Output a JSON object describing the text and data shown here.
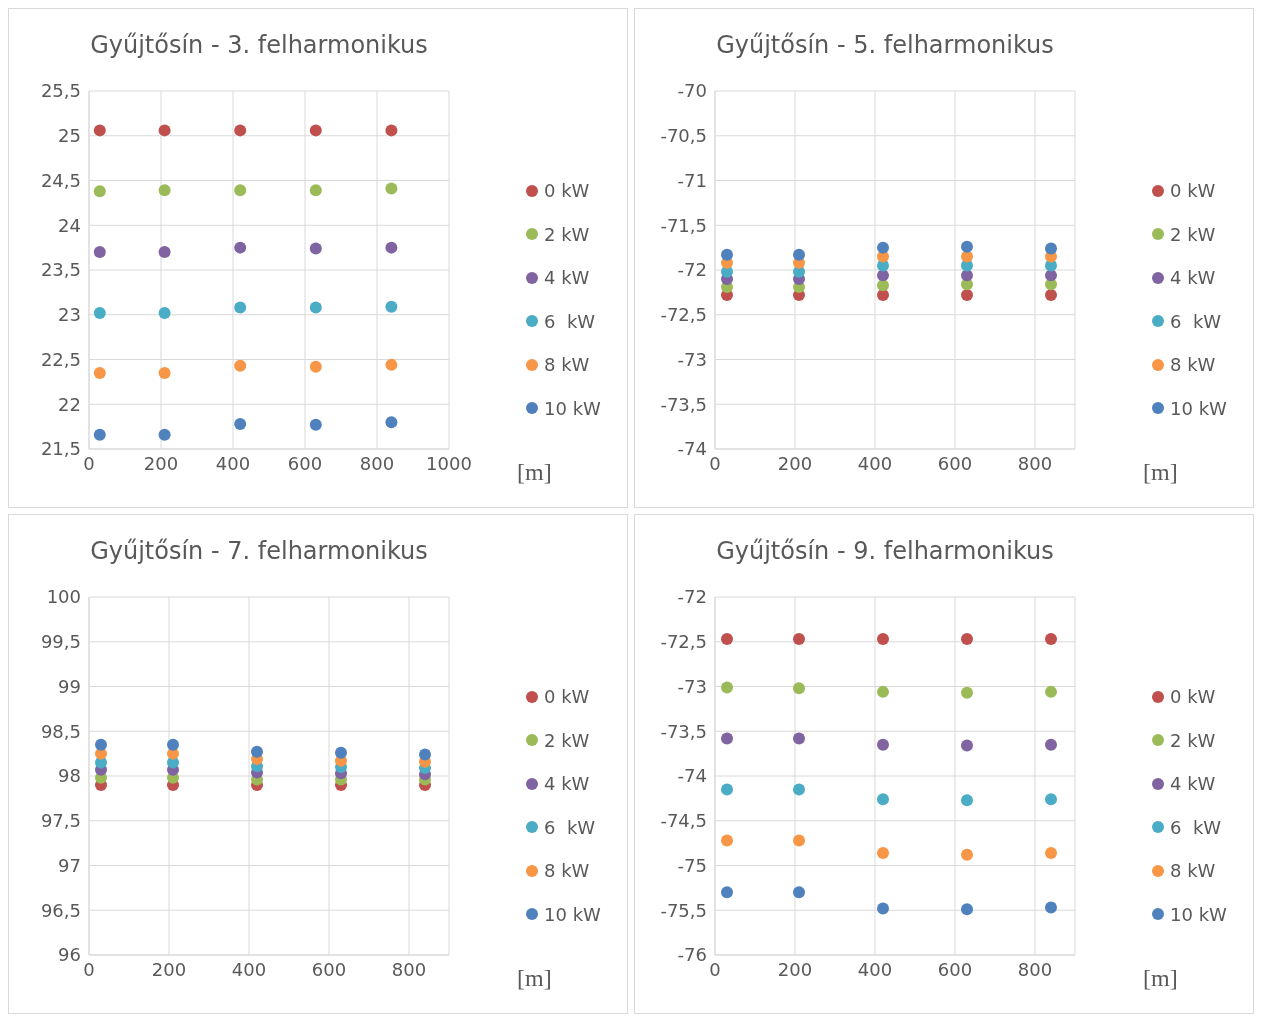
{
  "chart_data": [
    {
      "type": "scatter",
      "title": "Gyűjtősín - 3. felharmonikus",
      "xlabel": "[m]",
      "xlim": [
        0,
        1000
      ],
      "xticks": [
        0,
        200,
        400,
        600,
        800,
        1000
      ],
      "ylim": [
        21.5,
        25.5
      ],
      "yticks": [
        {
          "value": 21.5,
          "label": "21,5"
        },
        22,
        {
          "value": 22.5,
          "label": "22,5"
        },
        23,
        {
          "value": 23.5,
          "label": "23,5"
        },
        24,
        {
          "value": 24.5,
          "label": "24,5"
        },
        25,
        {
          "value": 25.5,
          "label": "25,5"
        }
      ],
      "grid": true,
      "legend": "right",
      "marker": "circle",
      "x": [
        30,
        210,
        420,
        630,
        840
      ],
      "series": [
        {
          "name": "0 kW",
          "color": "#c0504d",
          "values": [
            25.06,
            25.06,
            25.06,
            25.06,
            25.06
          ]
        },
        {
          "name": "2 kW",
          "color": "#9bbb59",
          "values": [
            24.38,
            24.39,
            24.39,
            24.39,
            24.41
          ]
        },
        {
          "name": "4 kW",
          "color": "#8064a2",
          "values": [
            23.7,
            23.7,
            23.75,
            23.74,
            23.75
          ]
        },
        {
          "name": "6  kW",
          "color": "#4bacc6",
          "values": [
            23.02,
            23.02,
            23.08,
            23.08,
            23.09
          ]
        },
        {
          "name": "8 kW",
          "color": "#f79646",
          "values": [
            22.35,
            22.35,
            22.43,
            22.42,
            22.44
          ]
        },
        {
          "name": "10 kW",
          "color": "#4f81bd",
          "values": [
            21.66,
            21.66,
            21.78,
            21.77,
            21.8
          ]
        }
      ]
    },
    {
      "type": "scatter",
      "title": "Gyűjtősín - 5. felharmonikus",
      "xlabel": "[m]",
      "xlim": [
        0,
        900
      ],
      "xticks": [
        0,
        200,
        400,
        600,
        800
      ],
      "ylim": [
        -74,
        -70
      ],
      "yticks": [
        -74,
        {
          "value": -73.5,
          "label": "-73,5"
        },
        -73,
        {
          "value": -72.5,
          "label": "-72,5"
        },
        -72,
        {
          "value": -71.5,
          "label": "-71,5"
        },
        -71,
        {
          "value": -70.5,
          "label": "-70,5"
        },
        -70
      ],
      "grid": true,
      "legend": "right",
      "marker": "circle",
      "x": [
        30,
        210,
        420,
        630,
        840
      ],
      "series": [
        {
          "name": "0 kW",
          "color": "#c0504d",
          "values": [
            -72.28,
            -72.28,
            -72.28,
            -72.28,
            -72.28
          ]
        },
        {
          "name": "2 kW",
          "color": "#9bbb59",
          "values": [
            -72.19,
            -72.19,
            -72.17,
            -72.16,
            -72.16
          ]
        },
        {
          "name": "4 kW",
          "color": "#8064a2",
          "values": [
            -72.1,
            -72.1,
            -72.06,
            -72.06,
            -72.06
          ]
        },
        {
          "name": "6  kW",
          "color": "#4bacc6",
          "values": [
            -72.02,
            -72.02,
            -71.95,
            -71.95,
            -71.95
          ]
        },
        {
          "name": "8 kW",
          "color": "#f79646",
          "values": [
            -71.92,
            -71.92,
            -71.85,
            -71.85,
            -71.85
          ]
        },
        {
          "name": "10 kW",
          "color": "#4f81bd",
          "values": [
            -71.83,
            -71.83,
            -71.75,
            -71.74,
            -71.76
          ]
        }
      ]
    },
    {
      "type": "scatter",
      "title": "Gyűjtősín - 7. felharmonikus",
      "xlabel": "[m]",
      "xlim": [
        0,
        900
      ],
      "xticks": [
        0,
        200,
        400,
        600,
        800
      ],
      "ylim": [
        96,
        100
      ],
      "yticks": [
        96,
        {
          "value": 96.5,
          "label": "96,5"
        },
        97,
        {
          "value": 97.5,
          "label": "97,5"
        },
        98,
        {
          "value": 98.5,
          "label": "98,5"
        },
        99,
        {
          "value": 99.5,
          "label": "99,5"
        },
        100
      ],
      "grid": true,
      "legend": "right",
      "marker": "circle",
      "x": [
        30,
        210,
        420,
        630,
        840
      ],
      "series": [
        {
          "name": "0 kW",
          "color": "#c0504d",
          "values": [
            97.9,
            97.9,
            97.9,
            97.9,
            97.9
          ]
        },
        {
          "name": "2 kW",
          "color": "#9bbb59",
          "values": [
            97.98,
            97.98,
            97.96,
            97.96,
            97.96
          ]
        },
        {
          "name": "4 kW",
          "color": "#8064a2",
          "values": [
            98.07,
            98.07,
            98.04,
            98.03,
            98.02
          ]
        },
        {
          "name": "6  kW",
          "color": "#4bacc6",
          "values": [
            98.15,
            98.15,
            98.11,
            98.1,
            98.09
          ]
        },
        {
          "name": "8 kW",
          "color": "#f79646",
          "values": [
            98.25,
            98.25,
            98.19,
            98.17,
            98.16
          ]
        },
        {
          "name": "10 kW",
          "color": "#4f81bd",
          "values": [
            98.35,
            98.35,
            98.27,
            98.26,
            98.24
          ]
        }
      ]
    },
    {
      "type": "scatter",
      "title": "Gyűjtősín - 9. felharmonikus",
      "xlabel": "[m]",
      "xlim": [
        0,
        900
      ],
      "xticks": [
        0,
        200,
        400,
        600,
        800
      ],
      "ylim": [
        -76,
        -72
      ],
      "yticks": [
        -76,
        {
          "value": -75.5,
          "label": "-75,5"
        },
        -75,
        {
          "value": -74.5,
          "label": "-74,5"
        },
        -74,
        {
          "value": -73.5,
          "label": "-73,5"
        },
        -73,
        {
          "value": -72.5,
          "label": "-72,5"
        },
        -72
      ],
      "grid": true,
      "legend": "right",
      "marker": "circle",
      "x": [
        30,
        210,
        420,
        630,
        840
      ],
      "series": [
        {
          "name": "0 kW",
          "color": "#c0504d",
          "values": [
            -72.47,
            -72.47,
            -72.47,
            -72.47,
            -72.47
          ]
        },
        {
          "name": "2 kW",
          "color": "#9bbb59",
          "values": [
            -73.01,
            -73.02,
            -73.06,
            -73.07,
            -73.06
          ]
        },
        {
          "name": "4 kW",
          "color": "#8064a2",
          "values": [
            -73.58,
            -73.58,
            -73.65,
            -73.66,
            -73.65
          ]
        },
        {
          "name": "6  kW",
          "color": "#4bacc6",
          "values": [
            -74.15,
            -74.15,
            -74.26,
            -74.27,
            -74.26
          ]
        },
        {
          "name": "8 kW",
          "color": "#f79646",
          "values": [
            -74.72,
            -74.72,
            -74.86,
            -74.88,
            -74.86
          ]
        },
        {
          "name": "10 kW",
          "color": "#4f81bd",
          "values": [
            -75.3,
            -75.3,
            -75.48,
            -75.49,
            -75.47
          ]
        }
      ]
    }
  ]
}
